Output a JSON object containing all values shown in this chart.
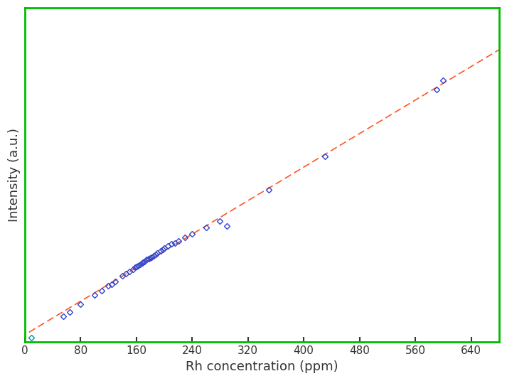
{
  "title": "",
  "xlabel": "Rh concentration (ppm)",
  "ylabel": "Intensity (a.u.)",
  "xlim": [
    0,
    680
  ],
  "ylim": [
    0,
    1.15
  ],
  "xticks": [
    0,
    80,
    160,
    240,
    320,
    400,
    480,
    560,
    640
  ],
  "border_color": "#00bb00",
  "line_color": "#ff5522",
  "marker_color": "#3344cc",
  "marker_color_outlier": "#009999",
  "data_points": [
    [
      10,
      0.015
    ],
    [
      55,
      0.09
    ],
    [
      65,
      0.105
    ],
    [
      80,
      0.13
    ],
    [
      100,
      0.162
    ],
    [
      110,
      0.178
    ],
    [
      120,
      0.195
    ],
    [
      125,
      0.2
    ],
    [
      130,
      0.21
    ],
    [
      140,
      0.228
    ],
    [
      145,
      0.236
    ],
    [
      150,
      0.244
    ],
    [
      155,
      0.25
    ],
    [
      158,
      0.257
    ],
    [
      160,
      0.26
    ],
    [
      162,
      0.263
    ],
    [
      165,
      0.268
    ],
    [
      168,
      0.272
    ],
    [
      170,
      0.275
    ],
    [
      172,
      0.278
    ],
    [
      175,
      0.284
    ],
    [
      178,
      0.288
    ],
    [
      180,
      0.29
    ],
    [
      182,
      0.293
    ],
    [
      185,
      0.298
    ],
    [
      188,
      0.302
    ],
    [
      190,
      0.307
    ],
    [
      195,
      0.315
    ],
    [
      198,
      0.32
    ],
    [
      200,
      0.323
    ],
    [
      205,
      0.33
    ],
    [
      210,
      0.338
    ],
    [
      215,
      0.342
    ],
    [
      220,
      0.348
    ],
    [
      230,
      0.36
    ],
    [
      240,
      0.372
    ],
    [
      260,
      0.395
    ],
    [
      280,
      0.418
    ],
    [
      290,
      0.4
    ],
    [
      350,
      0.525
    ],
    [
      430,
      0.64
    ],
    [
      590,
      0.87
    ],
    [
      600,
      0.9
    ]
  ],
  "line_slope": 0.00145,
  "line_intercept": 0.0,
  "xlabel_fontsize": 13,
  "ylabel_fontsize": 13,
  "tick_fontsize": 11,
  "fig_bg": "#ffffff",
  "ax_bg": "#ffffff",
  "border_linewidth": 2.0,
  "line_linewidth": 1.2,
  "marker_size": 4.5,
  "marker_edge_width": 1.0
}
